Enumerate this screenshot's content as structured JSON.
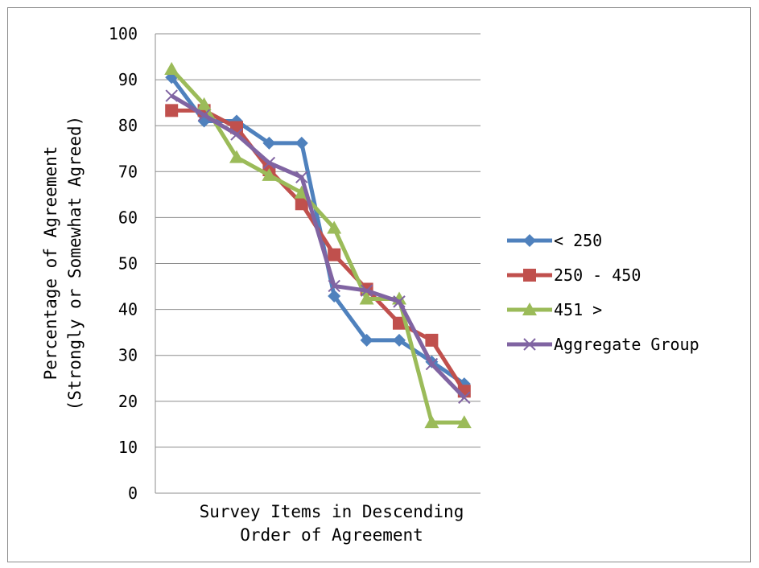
{
  "chart_data": {
    "type": "line",
    "xlabel": [
      "Survey Items in Descending",
      "Order of Agreement"
    ],
    "ylabel": [
      "Percentage of Agreement",
      "(Strongly or Somewhat Agreed)"
    ],
    "ylim": [
      0,
      100
    ],
    "yticks": [
      "0",
      "10",
      "20",
      "30",
      "40",
      "50",
      "60",
      "70",
      "80",
      "90",
      "100"
    ],
    "grid": "horizontal",
    "legend_position": "right",
    "x": [
      1,
      2,
      3,
      4,
      5,
      6,
      7,
      8,
      9,
      10
    ],
    "series": [
      {
        "name": "< 250",
        "color": "#4f81bd",
        "marker": "diamond",
        "values": [
          90.5,
          81,
          81,
          76.2,
          76.2,
          42.9,
          33.3,
          33.3,
          28.6,
          23.8
        ]
      },
      {
        "name": "250 - 450",
        "color": "#c0504d",
        "marker": "square",
        "values": [
          83.3,
          83.3,
          79.6,
          70.4,
          63,
          51.9,
          44.4,
          37,
          33.3,
          22.2
        ]
      },
      {
        "name": "451 >",
        "color": "#9bbb59",
        "marker": "triangle",
        "values": [
          92.3,
          84.6,
          73.1,
          69.2,
          65.4,
          57.7,
          42.3,
          42.3,
          15.4,
          15.4
        ]
      },
      {
        "name": "Aggregate Group",
        "color": "#8064a2",
        "marker": "x",
        "values": [
          86.5,
          82.3,
          78.1,
          71.9,
          68.8,
          45.1,
          44.1,
          41.7,
          28.1,
          20.8
        ]
      }
    ]
  }
}
